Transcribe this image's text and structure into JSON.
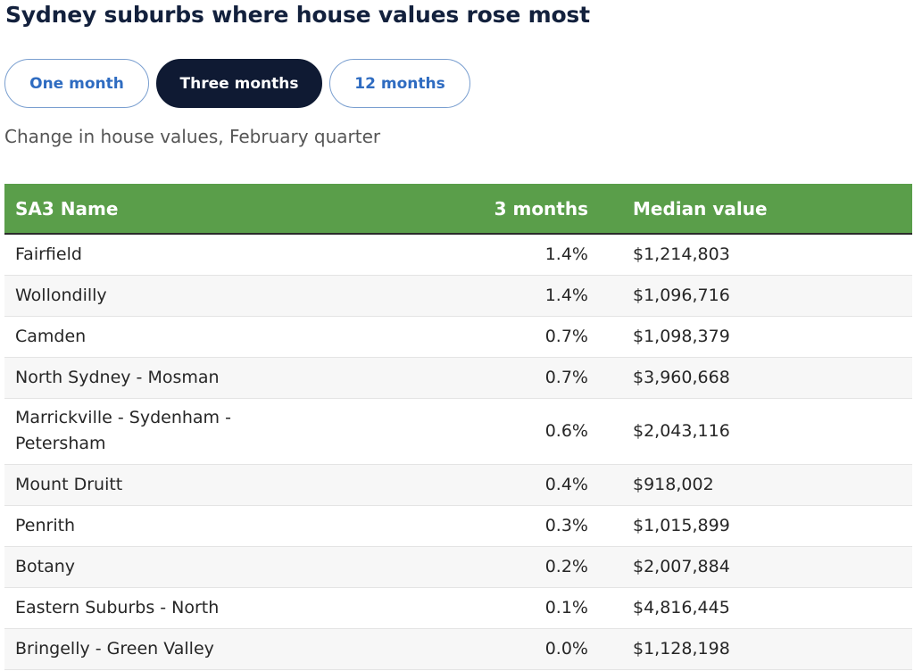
{
  "title": "Sydney suburbs where house values rose most",
  "tabs": [
    {
      "label": "One month",
      "active": false
    },
    {
      "label": "Three months",
      "active": true
    },
    {
      "label": "12 months",
      "active": false
    }
  ],
  "subtitle": "Change in house values, February quarter",
  "colors": {
    "header_bg": "#5a9e4a",
    "active_tab_bg": "#0f1a33",
    "tab_text": "#2f6cc1",
    "title": "#13213d"
  },
  "table": {
    "columns": [
      "SA3 Name",
      "3 months",
      "Median value"
    ],
    "rows": [
      {
        "name": "Fairfield",
        "change": "1.4%",
        "median": "$1,214,803"
      },
      {
        "name": "Wollondilly",
        "change": "1.4%",
        "median": "$1,096,716"
      },
      {
        "name": "Camden",
        "change": "0.7%",
        "median": "$1,098,379"
      },
      {
        "name": "North Sydney - Mosman",
        "change": "0.7%",
        "median": "$3,960,668"
      },
      {
        "name": "Marrickville - Sydenham - Petersham",
        "change": "0.6%",
        "median": "$2,043,116"
      },
      {
        "name": "Mount Druitt",
        "change": "0.4%",
        "median": "$918,002"
      },
      {
        "name": "Penrith",
        "change": "0.3%",
        "median": "$1,015,899"
      },
      {
        "name": "Botany",
        "change": "0.2%",
        "median": "$2,007,884"
      },
      {
        "name": "Eastern Suburbs - North",
        "change": "0.1%",
        "median": "$4,816,445"
      },
      {
        "name": "Bringelly - Green Valley",
        "change": "0.0%",
        "median": "$1,128,198"
      }
    ]
  },
  "chart_data": {
    "type": "table",
    "title": "Sydney suburbs where house values rose most",
    "subtitle": "Change in house values, February quarter",
    "columns": [
      "SA3 Name",
      "3 months",
      "Median value"
    ],
    "categories": [
      "Fairfield",
      "Wollondilly",
      "Camden",
      "North Sydney - Mosman",
      "Marrickville - Sydenham - Petersham",
      "Mount Druitt",
      "Penrith",
      "Botany",
      "Eastern Suburbs - North",
      "Bringelly - Green Valley"
    ],
    "series": [
      {
        "name": "3 months",
        "values": [
          1.4,
          1.4,
          0.7,
          0.7,
          0.6,
          0.4,
          0.3,
          0.2,
          0.1,
          0.0
        ]
      },
      {
        "name": "Median value",
        "values": [
          1214803,
          1096716,
          1098379,
          3960668,
          2043116,
          918002,
          1015899,
          2007884,
          4816445,
          1128198
        ]
      }
    ]
  }
}
